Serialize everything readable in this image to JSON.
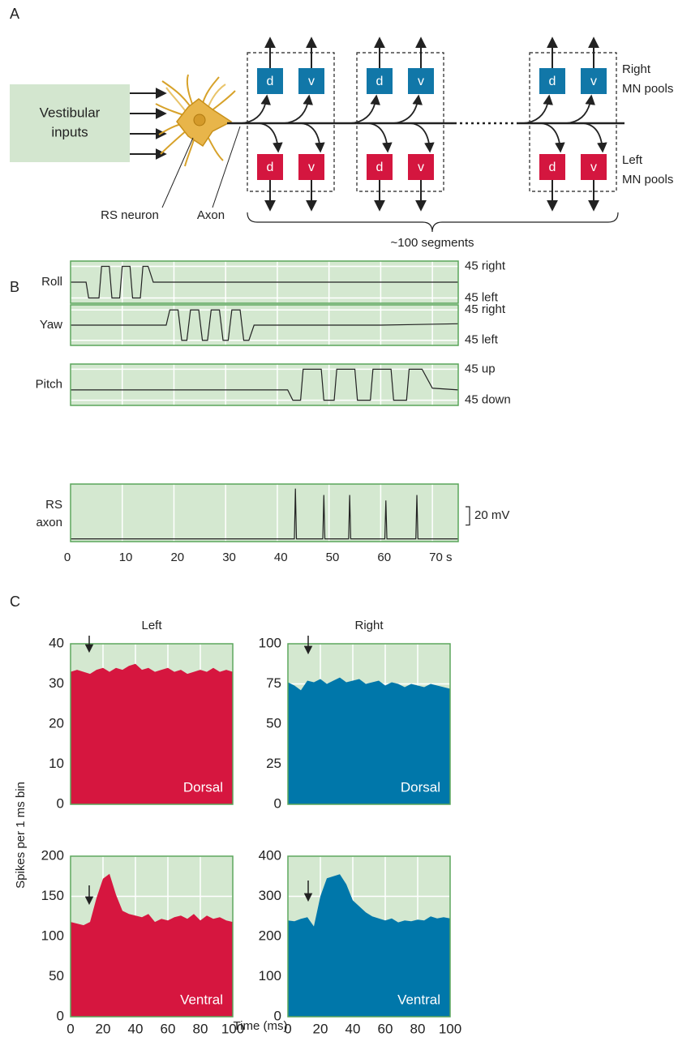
{
  "panel_labels": [
    "A",
    "B",
    "C"
  ],
  "diagram": {
    "input": [
      "Vestibular",
      "inputs"
    ],
    "neuron": "RS neuron",
    "axon": "Axon",
    "dorsal": "d",
    "ventral": "v",
    "right_pools": [
      "Right",
      "MN pools"
    ],
    "left_pools": [
      "Left",
      "MN pools"
    ],
    "segments": "~100 segments"
  },
  "panel_c": {
    "column_titles": [
      "Left",
      "Right"
    ],
    "ylabel": "Spikes per 1 ms bin",
    "xlabel": "Time (ms)"
  },
  "chart_data": [
    {
      "type": "line",
      "ylabel": "Yaw",
      "color": "#222222",
      "x": [
        0,
        18.5,
        19.2,
        20.8,
        21.5,
        22.5,
        23.2,
        24.8,
        25.5,
        26.5,
        27.2,
        28.8,
        29.5,
        30.5,
        31.2,
        32.8,
        33.5,
        34.5,
        35.5,
        60,
        75
      ],
      "values": [
        0,
        0,
        45,
        45,
        -45,
        -45,
        45,
        45,
        -45,
        -45,
        45,
        45,
        -45,
        -45,
        45,
        45,
        -45,
        -45,
        0,
        0,
        4
      ],
      "xlim": [
        0,
        75
      ],
      "ylim": [
        -60,
        60
      ],
      "xticks": [
        0,
        10,
        20,
        30,
        40,
        50,
        60,
        {
          "value": 70,
          "label": "70 s"
        }
      ],
      "yticks": [
        {
          "value": 45,
          "label": "45 right"
        },
        {
          "value": -45,
          "label": "45 left"
        }
      ],
      "grid": true,
      "xtick_labels": false
    },
    {
      "type": "line",
      "ylabel": "Pitch",
      "color": "#222222",
      "x": [
        0,
        42,
        43,
        44.5,
        45,
        48.5,
        49,
        51,
        51.5,
        55,
        55.5,
        58,
        58.5,
        62,
        62.5,
        65,
        65.5,
        68,
        70,
        75
      ],
      "values": [
        -15,
        -15,
        -45,
        -45,
        45,
        45,
        -45,
        -45,
        45,
        45,
        -45,
        -45,
        45,
        45,
        -45,
        -45,
        45,
        45,
        -10,
        -15
      ],
      "xlim": [
        0,
        75
      ],
      "ylim": [
        -60,
        60
      ],
      "xticks": [
        0,
        10,
        20,
        30,
        40,
        50,
        60,
        {
          "value": 70,
          "label": "70 s"
        }
      ],
      "yticks": [
        {
          "value": 45,
          "label": "45 up"
        },
        {
          "value": -45,
          "label": "45 down"
        }
      ],
      "grid": true,
      "xtick_labels": false
    },
    {
      "type": "line",
      "ylabel": "Roll",
      "color": "#222222",
      "x": [
        0,
        3,
        3.5,
        5.5,
        6,
        7.5,
        8,
        9.5,
        10,
        11.5,
        12,
        13.5,
        14,
        15,
        16,
        75
      ],
      "values": [
        0,
        0,
        -45,
        -45,
        45,
        45,
        -45,
        -45,
        45,
        45,
        -45,
        -45,
        45,
        45,
        0,
        0
      ],
      "xlim": [
        0,
        75
      ],
      "ylim": [
        -60,
        60
      ],
      "xticks": [
        0,
        10,
        20,
        30,
        40,
        50,
        60,
        {
          "value": 70,
          "label": "70 s"
        }
      ],
      "yticks": [
        {
          "value": 45,
          "label": "45 right"
        },
        {
          "value": -45,
          "label": "45 left"
        }
      ],
      "grid": true,
      "xtick_labels": false
    },
    {
      "type": "line",
      "ylabel": [
        "RS",
        "axon"
      ],
      "color": "#222222",
      "x": [
        0,
        43.3,
        43.5,
        43.7,
        48.8,
        49,
        49.2,
        53.8,
        54,
        54.2,
        60.8,
        61,
        61.2,
        66.8,
        67,
        67.2,
        75
      ],
      "values": [
        0,
        0,
        55,
        0,
        0,
        48,
        0,
        0,
        48,
        0,
        0,
        42,
        0,
        0,
        48,
        0,
        0
      ],
      "xlim": [
        0,
        75
      ],
      "ylim": [
        -3,
        60
      ],
      "xticks": [
        0,
        10,
        20,
        30,
        40,
        50,
        60,
        {
          "value": 70,
          "label": "70 s"
        }
      ],
      "yticks": [],
      "grid": true,
      "xtick_labels": true,
      "scale_bar": {
        "value": 20,
        "label": "20 mV"
      }
    },
    {
      "type": "area",
      "color": "#d6163f",
      "annotation": "Dorsal",
      "x": [
        0,
        4,
        8,
        12,
        16,
        20,
        24,
        28,
        32,
        36,
        40,
        44,
        48,
        52,
        56,
        60,
        64,
        68,
        72,
        76,
        80,
        84,
        88,
        92,
        96,
        100
      ],
      "values": [
        33,
        33.5,
        33,
        32.5,
        33.5,
        34,
        33,
        34,
        33.5,
        34.5,
        35,
        33.5,
        34,
        33,
        33.5,
        34,
        33,
        33.5,
        32.5,
        33,
        33.5,
        33,
        34,
        33,
        33.5,
        33
      ],
      "xlim": [
        0,
        100
      ],
      "ylim": [
        0,
        40
      ],
      "xticks": [
        0,
        20,
        40,
        60,
        80,
        100
      ],
      "yticks": [
        0,
        10,
        20,
        30,
        40
      ],
      "grid": true,
      "xtick_labels": false
    },
    {
      "type": "area",
      "color": "#0077aa",
      "annotation": "Dorsal",
      "x": [
        0,
        4,
        8,
        12,
        16,
        20,
        24,
        28,
        32,
        36,
        40,
        44,
        48,
        52,
        56,
        60,
        64,
        68,
        72,
        76,
        80,
        84,
        88,
        92,
        96,
        100
      ],
      "values": [
        76,
        74,
        71,
        77,
        76,
        78,
        75,
        77,
        79,
        76,
        77,
        78,
        75,
        76,
        77,
        74,
        76,
        75,
        73,
        75,
        74,
        73,
        75,
        74,
        73,
        72
      ],
      "xlim": [
        0,
        100
      ],
      "ylim": [
        0,
        100
      ],
      "xticks": [
        0,
        20,
        40,
        60,
        80,
        100
      ],
      "yticks": [
        0,
        25,
        50,
        75,
        100
      ],
      "grid": true,
      "xtick_labels": false
    },
    {
      "type": "area",
      "color": "#d6163f",
      "annotation": "Ventral",
      "x": [
        0,
        4,
        8,
        12,
        16,
        20,
        24,
        28,
        32,
        36,
        40,
        44,
        48,
        52,
        56,
        60,
        64,
        68,
        72,
        76,
        80,
        84,
        88,
        92,
        96,
        100
      ],
      "values": [
        118,
        116,
        114,
        118,
        148,
        172,
        178,
        152,
        132,
        128,
        126,
        124,
        128,
        118,
        122,
        120,
        124,
        126,
        122,
        128,
        120,
        126,
        122,
        124,
        120,
        118
      ],
      "xlim": [
        0,
        100
      ],
      "ylim": [
        0,
        200
      ],
      "xticks": [
        0,
        20,
        40,
        60,
        80,
        100
      ],
      "yticks": [
        0,
        50,
        100,
        150,
        200
      ],
      "grid": true,
      "xtick_labels": true
    },
    {
      "type": "area",
      "color": "#0077aa",
      "annotation": "Ventral",
      "x": [
        0,
        4,
        8,
        12,
        16,
        20,
        24,
        28,
        32,
        36,
        40,
        44,
        48,
        52,
        56,
        60,
        64,
        68,
        72,
        76,
        80,
        84,
        88,
        92,
        96,
        100
      ],
      "values": [
        240,
        238,
        244,
        248,
        225,
        300,
        345,
        350,
        355,
        330,
        290,
        275,
        260,
        250,
        245,
        240,
        245,
        235,
        240,
        238,
        242,
        240,
        250,
        245,
        248,
        245
      ],
      "xlim": [
        0,
        100
      ],
      "ylim": [
        0,
        400
      ],
      "xticks": [
        0,
        20,
        40,
        60,
        80,
        100
      ],
      "yticks": [
        0,
        100,
        200,
        300,
        400
      ],
      "grid": true,
      "xtick_labels": true
    }
  ]
}
